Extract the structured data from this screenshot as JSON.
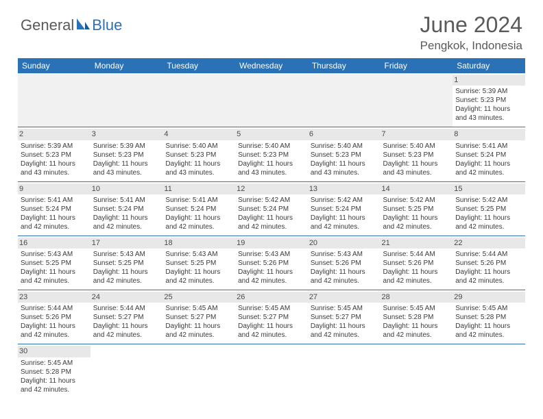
{
  "brand": {
    "part1": "General",
    "part2": "Blue"
  },
  "title": "June 2024",
  "location": "Pengkok, Indonesia",
  "colors": {
    "header_bg": "#2a72b5",
    "header_text": "#ffffff",
    "daynum_bg": "#e8e8e8",
    "border": "#2a72b5",
    "body_text": "#3a3a3a",
    "title_text": "#5a5a5a"
  },
  "weekdays": [
    "Sunday",
    "Monday",
    "Tuesday",
    "Wednesday",
    "Thursday",
    "Friday",
    "Saturday"
  ],
  "weeks": [
    [
      null,
      null,
      null,
      null,
      null,
      null,
      {
        "n": "1",
        "sr": "Sunrise: 5:39 AM",
        "ss": "Sunset: 5:23 PM",
        "d1": "Daylight: 11 hours",
        "d2": "and 43 minutes."
      }
    ],
    [
      {
        "n": "2",
        "sr": "Sunrise: 5:39 AM",
        "ss": "Sunset: 5:23 PM",
        "d1": "Daylight: 11 hours",
        "d2": "and 43 minutes."
      },
      {
        "n": "3",
        "sr": "Sunrise: 5:39 AM",
        "ss": "Sunset: 5:23 PM",
        "d1": "Daylight: 11 hours",
        "d2": "and 43 minutes."
      },
      {
        "n": "4",
        "sr": "Sunrise: 5:40 AM",
        "ss": "Sunset: 5:23 PM",
        "d1": "Daylight: 11 hours",
        "d2": "and 43 minutes."
      },
      {
        "n": "5",
        "sr": "Sunrise: 5:40 AM",
        "ss": "Sunset: 5:23 PM",
        "d1": "Daylight: 11 hours",
        "d2": "and 43 minutes."
      },
      {
        "n": "6",
        "sr": "Sunrise: 5:40 AM",
        "ss": "Sunset: 5:23 PM",
        "d1": "Daylight: 11 hours",
        "d2": "and 43 minutes."
      },
      {
        "n": "7",
        "sr": "Sunrise: 5:40 AM",
        "ss": "Sunset: 5:23 PM",
        "d1": "Daylight: 11 hours",
        "d2": "and 43 minutes."
      },
      {
        "n": "8",
        "sr": "Sunrise: 5:41 AM",
        "ss": "Sunset: 5:24 PM",
        "d1": "Daylight: 11 hours",
        "d2": "and 42 minutes."
      }
    ],
    [
      {
        "n": "9",
        "sr": "Sunrise: 5:41 AM",
        "ss": "Sunset: 5:24 PM",
        "d1": "Daylight: 11 hours",
        "d2": "and 42 minutes."
      },
      {
        "n": "10",
        "sr": "Sunrise: 5:41 AM",
        "ss": "Sunset: 5:24 PM",
        "d1": "Daylight: 11 hours",
        "d2": "and 42 minutes."
      },
      {
        "n": "11",
        "sr": "Sunrise: 5:41 AM",
        "ss": "Sunset: 5:24 PM",
        "d1": "Daylight: 11 hours",
        "d2": "and 42 minutes."
      },
      {
        "n": "12",
        "sr": "Sunrise: 5:42 AM",
        "ss": "Sunset: 5:24 PM",
        "d1": "Daylight: 11 hours",
        "d2": "and 42 minutes."
      },
      {
        "n": "13",
        "sr": "Sunrise: 5:42 AM",
        "ss": "Sunset: 5:24 PM",
        "d1": "Daylight: 11 hours",
        "d2": "and 42 minutes."
      },
      {
        "n": "14",
        "sr": "Sunrise: 5:42 AM",
        "ss": "Sunset: 5:25 PM",
        "d1": "Daylight: 11 hours",
        "d2": "and 42 minutes."
      },
      {
        "n": "15",
        "sr": "Sunrise: 5:42 AM",
        "ss": "Sunset: 5:25 PM",
        "d1": "Daylight: 11 hours",
        "d2": "and 42 minutes."
      }
    ],
    [
      {
        "n": "16",
        "sr": "Sunrise: 5:43 AM",
        "ss": "Sunset: 5:25 PM",
        "d1": "Daylight: 11 hours",
        "d2": "and 42 minutes."
      },
      {
        "n": "17",
        "sr": "Sunrise: 5:43 AM",
        "ss": "Sunset: 5:25 PM",
        "d1": "Daylight: 11 hours",
        "d2": "and 42 minutes."
      },
      {
        "n": "18",
        "sr": "Sunrise: 5:43 AM",
        "ss": "Sunset: 5:25 PM",
        "d1": "Daylight: 11 hours",
        "d2": "and 42 minutes."
      },
      {
        "n": "19",
        "sr": "Sunrise: 5:43 AM",
        "ss": "Sunset: 5:26 PM",
        "d1": "Daylight: 11 hours",
        "d2": "and 42 minutes."
      },
      {
        "n": "20",
        "sr": "Sunrise: 5:43 AM",
        "ss": "Sunset: 5:26 PM",
        "d1": "Daylight: 11 hours",
        "d2": "and 42 minutes."
      },
      {
        "n": "21",
        "sr": "Sunrise: 5:44 AM",
        "ss": "Sunset: 5:26 PM",
        "d1": "Daylight: 11 hours",
        "d2": "and 42 minutes."
      },
      {
        "n": "22",
        "sr": "Sunrise: 5:44 AM",
        "ss": "Sunset: 5:26 PM",
        "d1": "Daylight: 11 hours",
        "d2": "and 42 minutes."
      }
    ],
    [
      {
        "n": "23",
        "sr": "Sunrise: 5:44 AM",
        "ss": "Sunset: 5:26 PM",
        "d1": "Daylight: 11 hours",
        "d2": "and 42 minutes."
      },
      {
        "n": "24",
        "sr": "Sunrise: 5:44 AM",
        "ss": "Sunset: 5:27 PM",
        "d1": "Daylight: 11 hours",
        "d2": "and 42 minutes."
      },
      {
        "n": "25",
        "sr": "Sunrise: 5:45 AM",
        "ss": "Sunset: 5:27 PM",
        "d1": "Daylight: 11 hours",
        "d2": "and 42 minutes."
      },
      {
        "n": "26",
        "sr": "Sunrise: 5:45 AM",
        "ss": "Sunset: 5:27 PM",
        "d1": "Daylight: 11 hours",
        "d2": "and 42 minutes."
      },
      {
        "n": "27",
        "sr": "Sunrise: 5:45 AM",
        "ss": "Sunset: 5:27 PM",
        "d1": "Daylight: 11 hours",
        "d2": "and 42 minutes."
      },
      {
        "n": "28",
        "sr": "Sunrise: 5:45 AM",
        "ss": "Sunset: 5:28 PM",
        "d1": "Daylight: 11 hours",
        "d2": "and 42 minutes."
      },
      {
        "n": "29",
        "sr": "Sunrise: 5:45 AM",
        "ss": "Sunset: 5:28 PM",
        "d1": "Daylight: 11 hours",
        "d2": "and 42 minutes."
      }
    ],
    [
      {
        "n": "30",
        "sr": "Sunrise: 5:45 AM",
        "ss": "Sunset: 5:28 PM",
        "d1": "Daylight: 11 hours",
        "d2": "and 42 minutes."
      },
      null,
      null,
      null,
      null,
      null,
      null
    ]
  ]
}
